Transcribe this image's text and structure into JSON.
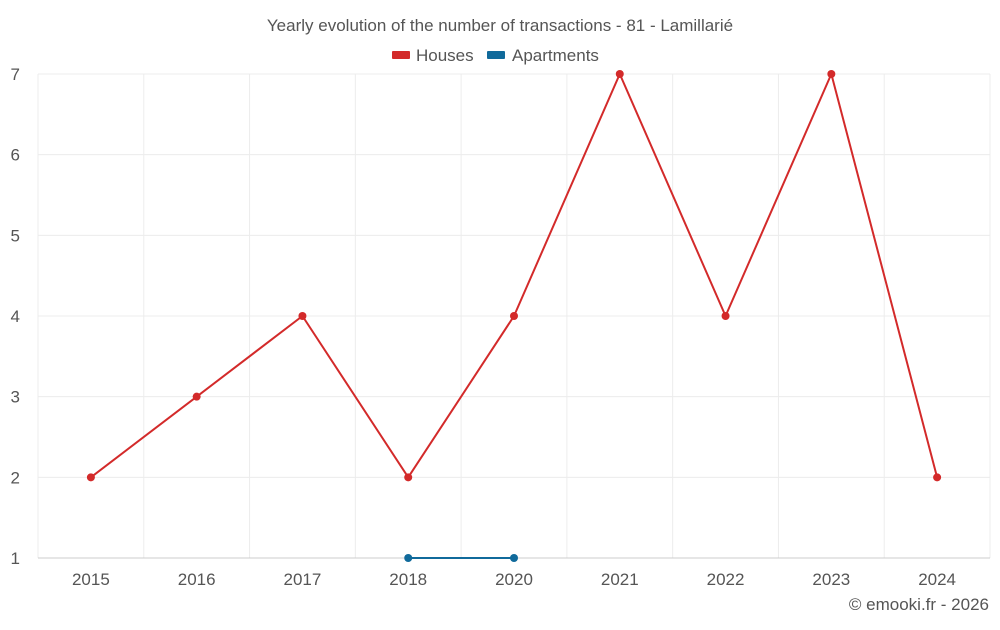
{
  "chart_data": {
    "type": "line",
    "title": "Yearly evolution of the number of transactions - 81 - Lamillarié",
    "categories": [
      "2015",
      "2016",
      "2017",
      "2018",
      "2020",
      "2021",
      "2022",
      "2023",
      "2024"
    ],
    "series": [
      {
        "name": "Houses",
        "color": "#d32a2a",
        "values": [
          2,
          3,
          4,
          2,
          4,
          7,
          4,
          7,
          2
        ]
      },
      {
        "name": "Apartments",
        "color": "#106a9b",
        "values": [
          null,
          null,
          null,
          1,
          1,
          null,
          null,
          null,
          null
        ]
      }
    ],
    "yticks": [
      "1",
      "2",
      "3",
      "4",
      "5",
      "6",
      "7"
    ],
    "ylim": [
      1,
      7
    ],
    "grid": true,
    "legend_position": "top-center",
    "xlabel": "",
    "ylabel": ""
  },
  "credit": "© emooki.fr - 2026"
}
